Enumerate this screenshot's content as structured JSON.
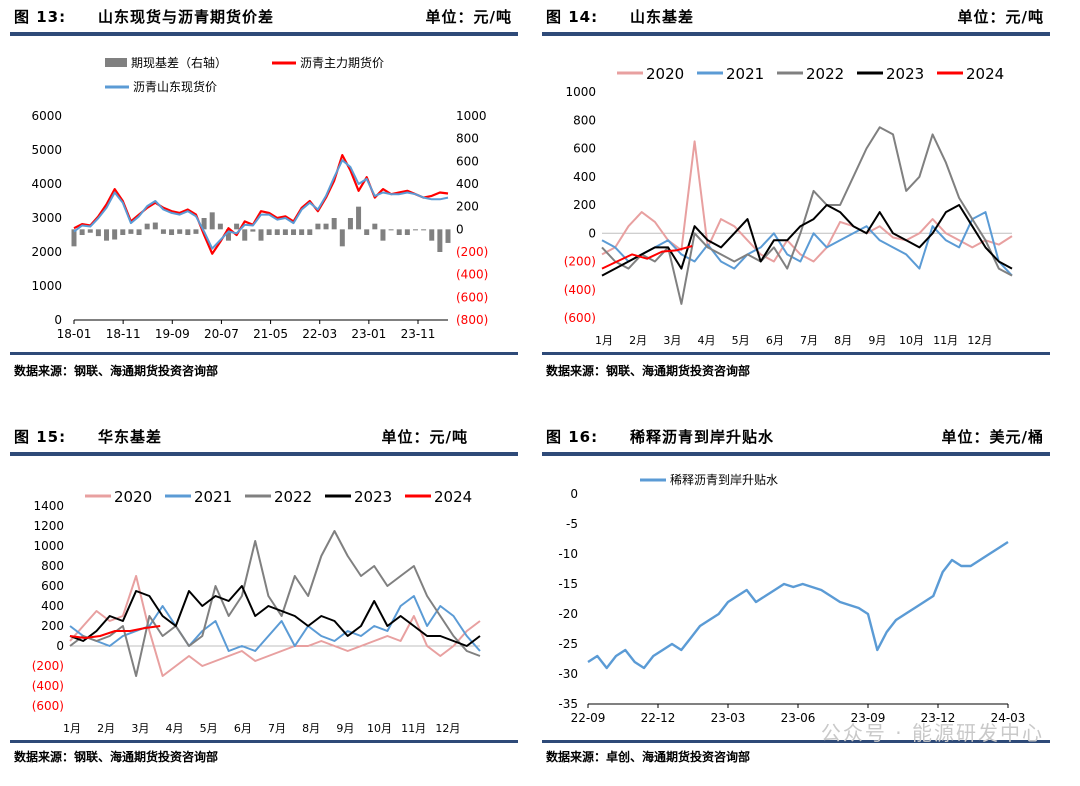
{
  "panels": {
    "p13": {
      "fig": "图 13:",
      "title": "山东现货与沥青期货价差",
      "unit": "单位：元/吨",
      "source": "数据来源：钢联、海通期货投资咨询部"
    },
    "p14": {
      "fig": "图 14:",
      "title": "山东基差",
      "unit": "单位：元/吨",
      "source": "数据来源：钢联、海通期货投资咨询部"
    },
    "p15": {
      "fig": "图 15:",
      "title": "华东基差",
      "unit": "单位：元/吨",
      "source": "数据来源：钢联、海通期货投资咨询部"
    },
    "p16": {
      "fig": "图 16:",
      "title": "稀释沥青到岸升贴水",
      "unit": "单位：美元/桶",
      "source": "数据来源：卓创、海通期货投资咨询部"
    }
  },
  "watermark": "公众号 · 能源研发中心",
  "colors": {
    "rule": "#2e4a78",
    "red": "#ff0000",
    "blue": "#5b9bd5",
    "gray": "#808080",
    "pink": "#e8a0a0",
    "black": "#000000",
    "negative": "#ff0000"
  },
  "chart_data": [
    {
      "type": "line",
      "id": "c13",
      "legend": [
        "期现基差（右轴）",
        "沥青主力期货价",
        "沥青山东现货价"
      ],
      "x_ticks": [
        "18-01",
        "18-11",
        "19-09",
        "20-07",
        "21-05",
        "22-03",
        "23-01",
        "23-11"
      ],
      "y_left": {
        "range": [
          0,
          6000
        ],
        "ticks": [
          "0",
          "1000",
          "2000",
          "3000",
          "4000",
          "5000",
          "6000"
        ]
      },
      "y_right": {
        "range": [
          -800,
          1000
        ],
        "ticks": [
          "(800)",
          "(600)",
          "(400)",
          "(200)",
          "0",
          "200",
          "400",
          "600",
          "800",
          "1000"
        ]
      },
      "series": [
        {
          "name": "沥青主力期货价",
          "color": "#ff0000",
          "values": [
            2700,
            2820,
            2780,
            3050,
            3400,
            3850,
            3500,
            2900,
            3100,
            3300,
            3450,
            3300,
            3200,
            3150,
            3250,
            3100,
            2500,
            1950,
            2300,
            2700,
            2500,
            2900,
            2800,
            3200,
            3150,
            3000,
            3050,
            2900,
            3300,
            3500,
            3200,
            3600,
            4100,
            4850,
            4400,
            3800,
            4200,
            3600,
            3850,
            3700,
            3750,
            3800,
            3700,
            3600,
            3650,
            3750,
            3720
          ]
        },
        {
          "name": "沥青山东现货价",
          "color": "#5b9bd5",
          "values": [
            2600,
            2780,
            2750,
            3000,
            3300,
            3750,
            3450,
            2850,
            3050,
            3350,
            3500,
            3250,
            3150,
            3100,
            3200,
            3050,
            2600,
            2100,
            2350,
            2600,
            2550,
            2800,
            2780,
            3100,
            3100,
            2950,
            3000,
            2850,
            3250,
            3450,
            3250,
            3650,
            4200,
            4700,
            4500,
            4000,
            4150,
            3650,
            3750,
            3700,
            3700,
            3750,
            3700,
            3600,
            3550,
            3550,
            3600
          ]
        },
        {
          "name": "期现基差（右轴）",
          "color": "#808080",
          "values": [
            -150,
            -50,
            -30,
            -60,
            -100,
            -90,
            -50,
            -40,
            -50,
            50,
            60,
            -40,
            -50,
            -40,
            -50,
            -40,
            100,
            150,
            50,
            -100,
            50,
            -100,
            -20,
            -100,
            -50,
            -50,
            -50,
            -50,
            -50,
            -50,
            50,
            50,
            100,
            -150,
            100,
            200,
            -50,
            50,
            -100,
            0,
            -50,
            -50,
            0,
            0,
            -100,
            -200,
            -120
          ]
        }
      ]
    },
    {
      "type": "line",
      "id": "c14",
      "legend": [
        "2020",
        "2021",
        "2022",
        "2023",
        "2024"
      ],
      "x_ticks": [
        "1月",
        "2月",
        "3月",
        "4月",
        "5月",
        "6月",
        "7月",
        "8月",
        "9月",
        "10月",
        "11月",
        "12月"
      ],
      "y": {
        "range": [
          -600,
          1000
        ],
        "ticks": [
          "(600)",
          "(400)",
          "(200)",
          "0",
          "200",
          "400",
          "600",
          "800",
          "1000"
        ]
      },
      "series": [
        {
          "name": "2020",
          "color": "#e8a0a0",
          "values": [
            -150,
            -100,
            50,
            150,
            80,
            -50,
            -120,
            650,
            -100,
            100,
            50,
            -50,
            -150,
            -200,
            -50,
            -150,
            -200,
            -100,
            80,
            50,
            0,
            50,
            -30,
            -50,
            0,
            100,
            0,
            -50,
            -100,
            -50,
            -80,
            -20
          ]
        },
        {
          "name": "2021",
          "color": "#5b9bd5",
          "values": [
            -50,
            -100,
            -200,
            -150,
            -100,
            -50,
            -150,
            -200,
            -80,
            -200,
            -250,
            -150,
            -100,
            0,
            -150,
            -200,
            0,
            -100,
            -50,
            0,
            50,
            -50,
            -100,
            -150,
            -250,
            50,
            -50,
            -100,
            100,
            150,
            -200,
            -300
          ]
        },
        {
          "name": "2022",
          "color": "#808080",
          "values": [
            -100,
            -200,
            -250,
            -150,
            -200,
            -100,
            -500,
            0,
            -100,
            -150,
            -200,
            -150,
            -200,
            -100,
            -250,
            0,
            300,
            200,
            200,
            400,
            600,
            750,
            700,
            300,
            400,
            700,
            500,
            250,
            100,
            -50,
            -250,
            -300
          ]
        },
        {
          "name": "2023",
          "color": "#000000",
          "values": [
            -300,
            -250,
            -200,
            -150,
            -100,
            -100,
            -250,
            50,
            -50,
            -100,
            0,
            100,
            -200,
            -50,
            -50,
            50,
            100,
            200,
            150,
            50,
            0,
            150,
            0,
            -50,
            -100,
            0,
            150,
            200,
            50,
            -100,
            -200,
            -250
          ]
        },
        {
          "name": "2024",
          "color": "#ff0000",
          "values": [
            -250,
            -200,
            -150,
            -180,
            -130,
            -120,
            -90
          ]
        }
      ]
    },
    {
      "type": "line",
      "id": "c15",
      "legend": [
        "2020",
        "2021",
        "2022",
        "2023",
        "2024"
      ],
      "x_ticks": [
        "1月",
        "2月",
        "3月",
        "4月",
        "5月",
        "6月",
        "7月",
        "8月",
        "9月",
        "10月",
        "11月",
        "12月"
      ],
      "y": {
        "range": [
          -600,
          1400
        ],
        "ticks": [
          "(600)",
          "(400)",
          "(200)",
          "0",
          "200",
          "400",
          "600",
          "800",
          "1000",
          "1200",
          "1400"
        ]
      },
      "series": [
        {
          "name": "2020",
          "color": "#e8a0a0",
          "values": [
            50,
            200,
            350,
            250,
            300,
            700,
            150,
            -300,
            -200,
            -100,
            -200,
            -150,
            -100,
            -50,
            -150,
            -100,
            -50,
            0,
            0,
            50,
            0,
            -50,
            0,
            50,
            100,
            50,
            300,
            0,
            -100,
            0,
            150,
            250
          ]
        },
        {
          "name": "2021",
          "color": "#5b9bd5",
          "values": [
            200,
            100,
            50,
            0,
            100,
            150,
            200,
            400,
            200,
            0,
            150,
            250,
            -50,
            0,
            -50,
            100,
            250,
            0,
            200,
            100,
            50,
            150,
            100,
            200,
            150,
            400,
            500,
            200,
            400,
            300,
            100,
            -50
          ]
        },
        {
          "name": "2022",
          "color": "#808080",
          "values": [
            0,
            100,
            50,
            100,
            200,
            -300,
            300,
            100,
            200,
            0,
            100,
            600,
            300,
            500,
            1050,
            500,
            300,
            700,
            500,
            900,
            1150,
            900,
            700,
            800,
            600,
            700,
            800,
            500,
            300,
            100,
            -50,
            -100
          ]
        },
        {
          "name": "2023",
          "color": "#000000",
          "values": [
            100,
            50,
            150,
            300,
            250,
            550,
            500,
            300,
            200,
            550,
            400,
            500,
            450,
            600,
            300,
            400,
            350,
            300,
            200,
            300,
            250,
            100,
            200,
            450,
            200,
            300,
            200,
            100,
            100,
            50,
            0,
            100
          ]
        },
        {
          "name": "2024",
          "color": "#ff0000",
          "values": [
            100,
            80,
            100,
            150,
            150,
            180,
            200
          ]
        }
      ]
    },
    {
      "type": "line",
      "id": "c16",
      "legend": [
        "稀释沥青到岸升贴水"
      ],
      "x_ticks": [
        "22-09",
        "22-12",
        "23-03",
        "23-06",
        "23-09",
        "23-12",
        "24-03"
      ],
      "y": {
        "range": [
          -35,
          0
        ],
        "ticks": [
          "-35",
          "-30",
          "-25",
          "-20",
          "-15",
          "-10",
          "-5",
          "0"
        ]
      },
      "series": [
        {
          "name": "稀释沥青到岸升贴水",
          "color": "#5b9bd5",
          "values": [
            -28,
            -27,
            -29,
            -27,
            -26,
            -28,
            -29,
            -27,
            -26,
            -25,
            -26,
            -24,
            -22,
            -21,
            -20,
            -18,
            -17,
            -16,
            -18,
            -17,
            -16,
            -15,
            -15.5,
            -15,
            -15.5,
            -16,
            -17,
            -18,
            -18.5,
            -19,
            -20,
            -26,
            -23,
            -21,
            -20,
            -19,
            -18,
            -17,
            -13,
            -11,
            -12,
            -12,
            -11,
            -10,
            -9,
            -8
          ]
        }
      ]
    }
  ]
}
